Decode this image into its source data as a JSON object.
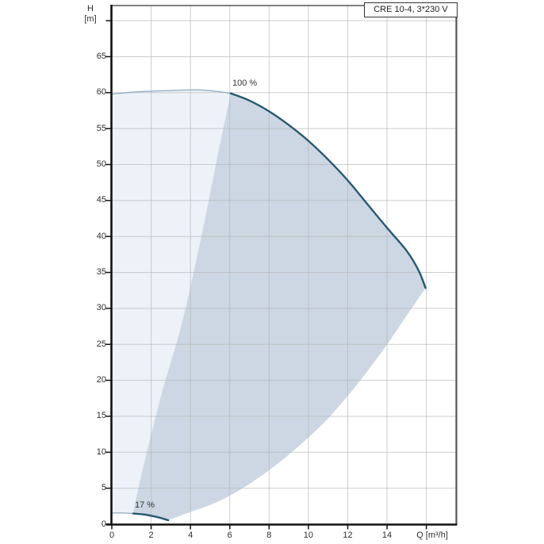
{
  "title_box": {
    "label": "CRE 10-4, 3*230 V"
  },
  "y_axis": {
    "unit_line1": "H",
    "unit_line2": "[m]",
    "tick_labels": [
      0,
      5,
      10,
      15,
      20,
      25,
      30,
      35,
      40,
      45,
      50,
      55,
      60,
      65
    ],
    "unlabeled_ticks": [
      70
    ]
  },
  "x_axis": {
    "unit": "Q [m³/h]",
    "tick_labels": [
      0,
      2,
      4,
      6,
      8,
      10,
      12,
      14
    ],
    "unlabeled_ticks": [
      16
    ]
  },
  "annotations_text": {
    "max_speed_label": "100 %",
    "min_speed_label": "17 %"
  },
  "colors": {
    "envelope_light": "#edf2f8",
    "envelope_dark": "#ccd7e3",
    "curve_dark": "#275872",
    "curve_light": "#8fa9c6",
    "grid": "#b5b5b5",
    "axis": "#111111",
    "frame": "#555555",
    "text": "#2e2e2e"
  },
  "chart_data": {
    "type": "line",
    "title": "CRE 10-4, 3*230 V",
    "xlabel": "Q [m³/h]",
    "ylabel": "H [m]",
    "xlim": [
      0,
      17.5
    ],
    "ylim": [
      0,
      72
    ],
    "grid": true,
    "x_tick_step": 2,
    "y_tick_step": 5,
    "series": [
      {
        "name": "max_speed_lead_in",
        "speed": "100 %",
        "style": "thin",
        "points": [
          [
            0,
            59.8
          ],
          [
            1,
            60.05
          ],
          [
            2,
            60.2
          ],
          [
            3,
            60.3
          ],
          [
            4,
            60.38
          ],
          [
            4.7,
            60.35
          ],
          [
            5.4,
            60.15
          ],
          [
            6.05,
            59.9
          ]
        ]
      },
      {
        "name": "max_speed_curve",
        "speed": "100 %",
        "style": "thick",
        "points": [
          [
            6.05,
            59.9
          ],
          [
            7,
            58.9
          ],
          [
            8,
            57.4
          ],
          [
            9,
            55.5
          ],
          [
            10,
            53.3
          ],
          [
            11,
            50.7
          ],
          [
            12,
            47.8
          ],
          [
            13,
            44.5
          ],
          [
            14,
            41.2
          ],
          [
            15,
            38.0
          ],
          [
            15.6,
            35.3
          ],
          [
            15.96,
            32.85
          ]
        ]
      },
      {
        "name": "min_speed_lead_in",
        "speed": "17 %",
        "style": "thin",
        "points": [
          [
            0,
            1.56
          ],
          [
            0.55,
            1.55
          ],
          [
            1.08,
            1.48
          ]
        ]
      },
      {
        "name": "min_speed_curve",
        "speed": "17 %",
        "style": "thick",
        "points": [
          [
            1.08,
            1.48
          ],
          [
            1.7,
            1.32
          ],
          [
            2.3,
            1.0
          ],
          [
            2.87,
            0.55
          ]
        ]
      },
      {
        "name": "envelope_left_boundary",
        "speed": "",
        "style": "fill-edge",
        "points": [
          [
            1.08,
            1.48
          ],
          [
            1.5,
            6.8
          ],
          [
            2.5,
            17.8
          ],
          [
            3.55,
            27.8
          ],
          [
            4.54,
            39.8
          ],
          [
            5.35,
            50.8
          ],
          [
            6.05,
            59.9
          ]
        ]
      },
      {
        "name": "envelope_right_boundary",
        "speed": "",
        "style": "fill-edge",
        "points": [
          [
            2.87,
            0.55
          ],
          [
            4,
            1.7
          ],
          [
            5.2,
            2.9
          ],
          [
            6.6,
            4.9
          ],
          [
            8,
            7.5
          ],
          [
            9.1,
            9.9
          ],
          [
            10.3,
            12.8
          ],
          [
            11.2,
            15.3
          ],
          [
            12.5,
            19.5
          ],
          [
            13.9,
            24.6
          ],
          [
            15,
            29.0
          ],
          [
            15.96,
            32.85
          ]
        ]
      }
    ],
    "annotations": [
      {
        "text": "100 %",
        "q": 6.13,
        "h": 61.3
      },
      {
        "text": "17 %",
        "q": 1.15,
        "h": 2.6
      }
    ]
  }
}
